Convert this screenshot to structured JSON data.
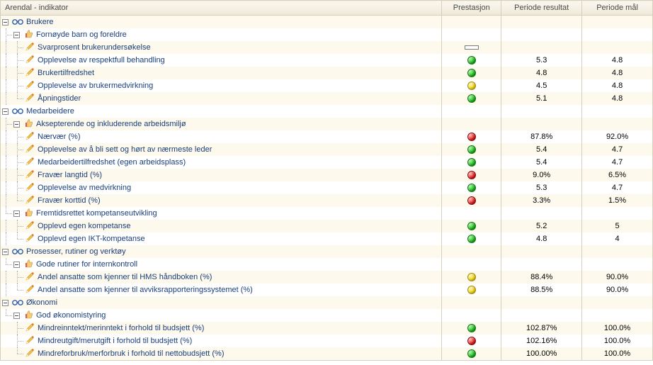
{
  "header": {
    "indicator": "Arendal - indikator",
    "prestasjon": "Prestasjon",
    "periode_resultat": "Periode resultat",
    "periode_mal": "Periode mål"
  },
  "colors": {
    "stripe_odd": "#fdf9ed",
    "stripe_even": "#ffffff",
    "border": "#d7cfbe",
    "text_link": "#1a3e7a",
    "status_green": "#17b317",
    "status_yellow": "#f1d416",
    "status_red": "#e11717"
  },
  "rows": [
    {
      "level": 0,
      "type": "category",
      "toggle": true,
      "icon": "glasses",
      "label": "Brukere"
    },
    {
      "level": 1,
      "type": "group",
      "toggle": true,
      "icon": "thumb",
      "label": "Fornøyde barn og foreldre",
      "parentLast": [
        false
      ]
    },
    {
      "level": 2,
      "type": "item",
      "icon": "pencil",
      "label": "Svarprosent brukerundersøkelse",
      "status": "bar",
      "parentLast": [
        false,
        true
      ]
    },
    {
      "level": 2,
      "type": "item",
      "icon": "pencil",
      "label": "Opplevelse av respektfull behandling",
      "status": "green",
      "result": "5.3",
      "goal": "4.8",
      "parentLast": [
        false,
        true
      ]
    },
    {
      "level": 2,
      "type": "item",
      "icon": "pencil",
      "label": "Brukertilfredshet",
      "status": "green",
      "result": "4.8",
      "goal": "4.8",
      "parentLast": [
        false,
        true
      ]
    },
    {
      "level": 2,
      "type": "item",
      "icon": "pencil",
      "label": "Opplevelse av brukermedvirkning",
      "status": "yellow",
      "result": "4.5",
      "goal": "4.8",
      "parentLast": [
        false,
        true
      ]
    },
    {
      "level": 2,
      "type": "item",
      "icon": "pencil",
      "label": "Åpningstider",
      "status": "green",
      "result": "5.1",
      "goal": "4.8",
      "last": true,
      "parentLast": [
        false,
        true
      ]
    },
    {
      "level": 0,
      "type": "category",
      "toggle": true,
      "icon": "glasses",
      "label": "Medarbeidere"
    },
    {
      "level": 1,
      "type": "group",
      "toggle": true,
      "icon": "thumb",
      "label": "Aksepterende og inkluderende arbeidsmiljø",
      "parentLast": [
        false
      ]
    },
    {
      "level": 2,
      "type": "item",
      "icon": "pencil",
      "label": "Nærvær (%)",
      "status": "red",
      "result": "87.8%",
      "goal": "92.0%",
      "parentLast": [
        false,
        false
      ]
    },
    {
      "level": 2,
      "type": "item",
      "icon": "pencil",
      "label": "Opplevelse av å bli sett og hørt av nærmeste leder",
      "status": "green",
      "result": "5.4",
      "goal": "4.7",
      "parentLast": [
        false,
        false
      ]
    },
    {
      "level": 2,
      "type": "item",
      "icon": "pencil",
      "label": "Medarbeidertilfredshet (egen arbeidsplass)",
      "status": "green",
      "result": "5.4",
      "goal": "4.7",
      "parentLast": [
        false,
        false
      ]
    },
    {
      "level": 2,
      "type": "item",
      "icon": "pencil",
      "label": "Fravær langtid (%)",
      "status": "red",
      "result": "9.0%",
      "goal": "6.5%",
      "parentLast": [
        false,
        false
      ]
    },
    {
      "level": 2,
      "type": "item",
      "icon": "pencil",
      "label": "Opplevelse av medvirkning",
      "status": "green",
      "result": "5.3",
      "goal": "4.7",
      "parentLast": [
        false,
        false
      ]
    },
    {
      "level": 2,
      "type": "item",
      "icon": "pencil",
      "label": "Fravær korttid (%)",
      "status": "red",
      "result": "3.3%",
      "goal": "1.5%",
      "last": true,
      "parentLast": [
        false,
        false
      ]
    },
    {
      "level": 1,
      "type": "group",
      "toggle": true,
      "icon": "thumb",
      "label": "Fremtidsrettet kompetanseutvikling",
      "last": true,
      "parentLast": [
        false
      ]
    },
    {
      "level": 2,
      "type": "item",
      "icon": "pencil",
      "label": "Opplevd egen kompetanse",
      "status": "green",
      "result": "5.2",
      "goal": "5",
      "parentLast": [
        false,
        true
      ]
    },
    {
      "level": 2,
      "type": "item",
      "icon": "pencil",
      "label": "Opplevd egen IKT-kompetanse",
      "status": "green",
      "result": "4.8",
      "goal": "4",
      "last": true,
      "parentLast": [
        false,
        true
      ]
    },
    {
      "level": 0,
      "type": "category",
      "toggle": true,
      "icon": "glasses",
      "label": "Prosesser, rutiner og verktøy"
    },
    {
      "level": 1,
      "type": "group",
      "toggle": true,
      "icon": "thumb",
      "label": "Gode rutiner for internkontroll",
      "last": true,
      "parentLast": [
        false
      ]
    },
    {
      "level": 2,
      "type": "item",
      "icon": "pencil",
      "label": "Andel ansatte som kjenner til HMS håndboken (%)",
      "status": "yellow",
      "result": "88.4%",
      "goal": "90.0%",
      "parentLast": [
        false,
        true
      ]
    },
    {
      "level": 2,
      "type": "item",
      "icon": "pencil",
      "label": "Andel ansatte som kjenner til avviksrapporteringssystemet (%)",
      "status": "yellow",
      "result": "88.5%",
      "goal": "90.0%",
      "last": true,
      "parentLast": [
        false,
        true
      ]
    },
    {
      "level": 0,
      "type": "category",
      "toggle": true,
      "icon": "glasses",
      "label": "Økonomi",
      "last": true
    },
    {
      "level": 1,
      "type": "group",
      "toggle": true,
      "icon": "thumb",
      "label": "God økonomistyring",
      "last": true,
      "parentLast": [
        true
      ]
    },
    {
      "level": 2,
      "type": "item",
      "icon": "pencil",
      "label": "Mindreinntekt/merinntekt i forhold til budsjett (%)",
      "status": "green",
      "result": "102.87%",
      "goal": "100.0%",
      "parentLast": [
        true,
        true
      ]
    },
    {
      "level": 2,
      "type": "item",
      "icon": "pencil",
      "label": "Mindreutgift/merutgift i forhold til budsjett (%)",
      "status": "red",
      "result": "102.16%",
      "goal": "100.0%",
      "parentLast": [
        true,
        true
      ]
    },
    {
      "level": 2,
      "type": "item",
      "icon": "pencil",
      "label": "Mindreforbruk/merforbruk i forhold til nettobudsjett (%)",
      "status": "green",
      "result": "100.00%",
      "goal": "100.0%",
      "last": true,
      "parentLast": [
        true,
        true
      ]
    }
  ]
}
